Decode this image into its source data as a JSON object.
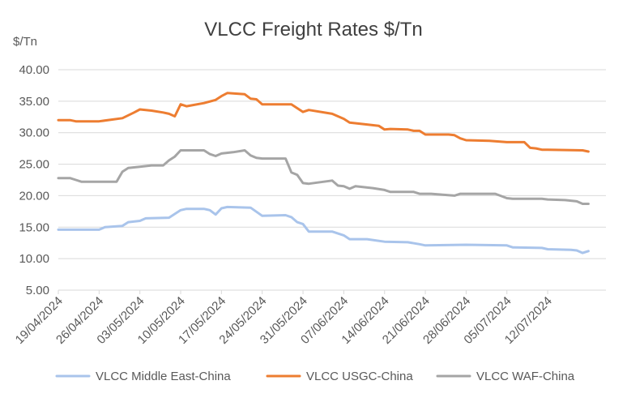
{
  "chart_data": {
    "type": "line",
    "title": "VLCC Freight Rates $/Tn",
    "ylabel": "$/Tn",
    "xlabel": "",
    "ylim": [
      5,
      40
    ],
    "ytick_labels": [
      "5.00",
      "10.00",
      "15.00",
      "20.00",
      "25.00",
      "30.00",
      "35.00",
      "40.00"
    ],
    "x_tick_labels": [
      "19/04/2024",
      "26/04/2024",
      "03/05/2024",
      "10/05/2024",
      "17/05/2024",
      "24/05/2024",
      "31/05/2024",
      "07/06/2024",
      "14/06/2024",
      "21/06/2024",
      "28/06/2024",
      "05/07/2024",
      "12/07/2024"
    ],
    "x_range": [
      "19/04/2024",
      "22/07/2024"
    ],
    "grid": "horizontal",
    "legend_position": "bottom",
    "series": [
      {
        "name": "VLCC Middle East-China",
        "color": "#a9c4eb",
        "points": [
          [
            "19/04/2024",
            14.6
          ],
          [
            "26/04/2024",
            14.6
          ],
          [
            "27/04/2024",
            15.0
          ],
          [
            "30/04/2024",
            15.2
          ],
          [
            "01/05/2024",
            15.8
          ],
          [
            "03/05/2024",
            16.0
          ],
          [
            "04/05/2024",
            16.4
          ],
          [
            "08/05/2024",
            16.5
          ],
          [
            "10/05/2024",
            17.7
          ],
          [
            "11/05/2024",
            17.9
          ],
          [
            "14/05/2024",
            17.9
          ],
          [
            "15/05/2024",
            17.7
          ],
          [
            "16/05/2024",
            17.0
          ],
          [
            "17/05/2024",
            18.0
          ],
          [
            "18/05/2024",
            18.2
          ],
          [
            "22/05/2024",
            18.1
          ],
          [
            "24/05/2024",
            16.8
          ],
          [
            "28/05/2024",
            16.9
          ],
          [
            "29/05/2024",
            16.6
          ],
          [
            "30/05/2024",
            15.8
          ],
          [
            "31/05/2024",
            15.5
          ],
          [
            "01/06/2024",
            14.3
          ],
          [
            "05/06/2024",
            14.3
          ],
          [
            "07/06/2024",
            13.7
          ],
          [
            "08/06/2024",
            13.1
          ],
          [
            "11/06/2024",
            13.1
          ],
          [
            "14/06/2024",
            12.7
          ],
          [
            "18/06/2024",
            12.6
          ],
          [
            "20/06/2024",
            12.3
          ],
          [
            "21/06/2024",
            12.1
          ],
          [
            "28/06/2024",
            12.2
          ],
          [
            "05/07/2024",
            12.1
          ],
          [
            "06/07/2024",
            11.8
          ],
          [
            "11/07/2024",
            11.7
          ],
          [
            "12/07/2024",
            11.5
          ],
          [
            "16/07/2024",
            11.4
          ],
          [
            "17/07/2024",
            11.3
          ],
          [
            "18/07/2024",
            10.9
          ],
          [
            "19/07/2024",
            11.2
          ]
        ]
      },
      {
        "name": "VLCC USGC-China",
        "color": "#ed7d31",
        "points": [
          [
            "19/04/2024",
            32.0
          ],
          [
            "21/04/2024",
            32.0
          ],
          [
            "22/04/2024",
            31.8
          ],
          [
            "24/04/2024",
            31.8
          ],
          [
            "26/04/2024",
            31.8
          ],
          [
            "30/04/2024",
            32.3
          ],
          [
            "02/05/2024",
            33.2
          ],
          [
            "03/05/2024",
            33.7
          ],
          [
            "05/05/2024",
            33.5
          ],
          [
            "07/05/2024",
            33.2
          ],
          [
            "08/05/2024",
            33.0
          ],
          [
            "09/05/2024",
            32.6
          ],
          [
            "10/05/2024",
            34.5
          ],
          [
            "11/05/2024",
            34.2
          ],
          [
            "14/05/2024",
            34.7
          ],
          [
            "16/05/2024",
            35.2
          ],
          [
            "17/05/2024",
            35.8
          ],
          [
            "18/05/2024",
            36.3
          ],
          [
            "21/05/2024",
            36.1
          ],
          [
            "22/05/2024",
            35.4
          ],
          [
            "23/05/2024",
            35.3
          ],
          [
            "24/05/2024",
            34.5
          ],
          [
            "28/05/2024",
            34.5
          ],
          [
            "29/05/2024",
            34.5
          ],
          [
            "31/05/2024",
            33.3
          ],
          [
            "01/06/2024",
            33.6
          ],
          [
            "05/06/2024",
            33.0
          ],
          [
            "07/06/2024",
            32.2
          ],
          [
            "08/06/2024",
            31.6
          ],
          [
            "11/06/2024",
            31.3
          ],
          [
            "13/06/2024",
            31.1
          ],
          [
            "14/06/2024",
            30.5
          ],
          [
            "15/06/2024",
            30.6
          ],
          [
            "18/06/2024",
            30.5
          ],
          [
            "19/06/2024",
            30.3
          ],
          [
            "20/06/2024",
            30.3
          ],
          [
            "21/06/2024",
            29.7
          ],
          [
            "25/06/2024",
            29.7
          ],
          [
            "26/06/2024",
            29.6
          ],
          [
            "27/06/2024",
            29.1
          ],
          [
            "28/06/2024",
            28.8
          ],
          [
            "02/07/2024",
            28.7
          ],
          [
            "05/07/2024",
            28.5
          ],
          [
            "08/07/2024",
            28.5
          ],
          [
            "09/07/2024",
            27.6
          ],
          [
            "10/07/2024",
            27.5
          ],
          [
            "11/07/2024",
            27.3
          ],
          [
            "12/07/2024",
            27.3
          ],
          [
            "18/07/2024",
            27.2
          ],
          [
            "19/07/2024",
            27.0
          ]
        ]
      },
      {
        "name": "VLCC WAF-China",
        "color": "#a5a5a5",
        "points": [
          [
            "19/04/2024",
            22.8
          ],
          [
            "21/04/2024",
            22.8
          ],
          [
            "22/04/2024",
            22.5
          ],
          [
            "23/04/2024",
            22.2
          ],
          [
            "26/04/2024",
            22.2
          ],
          [
            "29/04/2024",
            22.2
          ],
          [
            "30/04/2024",
            23.8
          ],
          [
            "01/05/2024",
            24.4
          ],
          [
            "03/05/2024",
            24.6
          ],
          [
            "05/05/2024",
            24.8
          ],
          [
            "07/05/2024",
            24.8
          ],
          [
            "08/05/2024",
            25.6
          ],
          [
            "09/05/2024",
            26.2
          ],
          [
            "10/05/2024",
            27.2
          ],
          [
            "14/05/2024",
            27.2
          ],
          [
            "15/05/2024",
            26.6
          ],
          [
            "16/05/2024",
            26.3
          ],
          [
            "17/05/2024",
            26.7
          ],
          [
            "19/05/2024",
            26.9
          ],
          [
            "21/05/2024",
            27.2
          ],
          [
            "22/05/2024",
            26.4
          ],
          [
            "23/05/2024",
            26.0
          ],
          [
            "24/05/2024",
            25.9
          ],
          [
            "28/05/2024",
            25.9
          ],
          [
            "29/05/2024",
            23.7
          ],
          [
            "30/05/2024",
            23.3
          ],
          [
            "31/05/2024",
            22.0
          ],
          [
            "01/06/2024",
            21.9
          ],
          [
            "05/06/2024",
            22.4
          ],
          [
            "06/06/2024",
            21.6
          ],
          [
            "07/06/2024",
            21.5
          ],
          [
            "08/06/2024",
            21.1
          ],
          [
            "09/06/2024",
            21.5
          ],
          [
            "12/06/2024",
            21.2
          ],
          [
            "14/06/2024",
            20.9
          ],
          [
            "15/06/2024",
            20.6
          ],
          [
            "19/06/2024",
            20.6
          ],
          [
            "20/06/2024",
            20.3
          ],
          [
            "22/06/2024",
            20.3
          ],
          [
            "26/06/2024",
            20.0
          ],
          [
            "27/06/2024",
            20.3
          ],
          [
            "30/06/2024",
            20.3
          ],
          [
            "03/07/2024",
            20.3
          ],
          [
            "05/07/2024",
            19.6
          ],
          [
            "06/07/2024",
            19.5
          ],
          [
            "11/07/2024",
            19.5
          ],
          [
            "12/07/2024",
            19.4
          ],
          [
            "15/07/2024",
            19.3
          ],
          [
            "17/07/2024",
            19.1
          ],
          [
            "18/07/2024",
            18.7
          ],
          [
            "19/07/2024",
            18.7
          ]
        ]
      }
    ]
  }
}
